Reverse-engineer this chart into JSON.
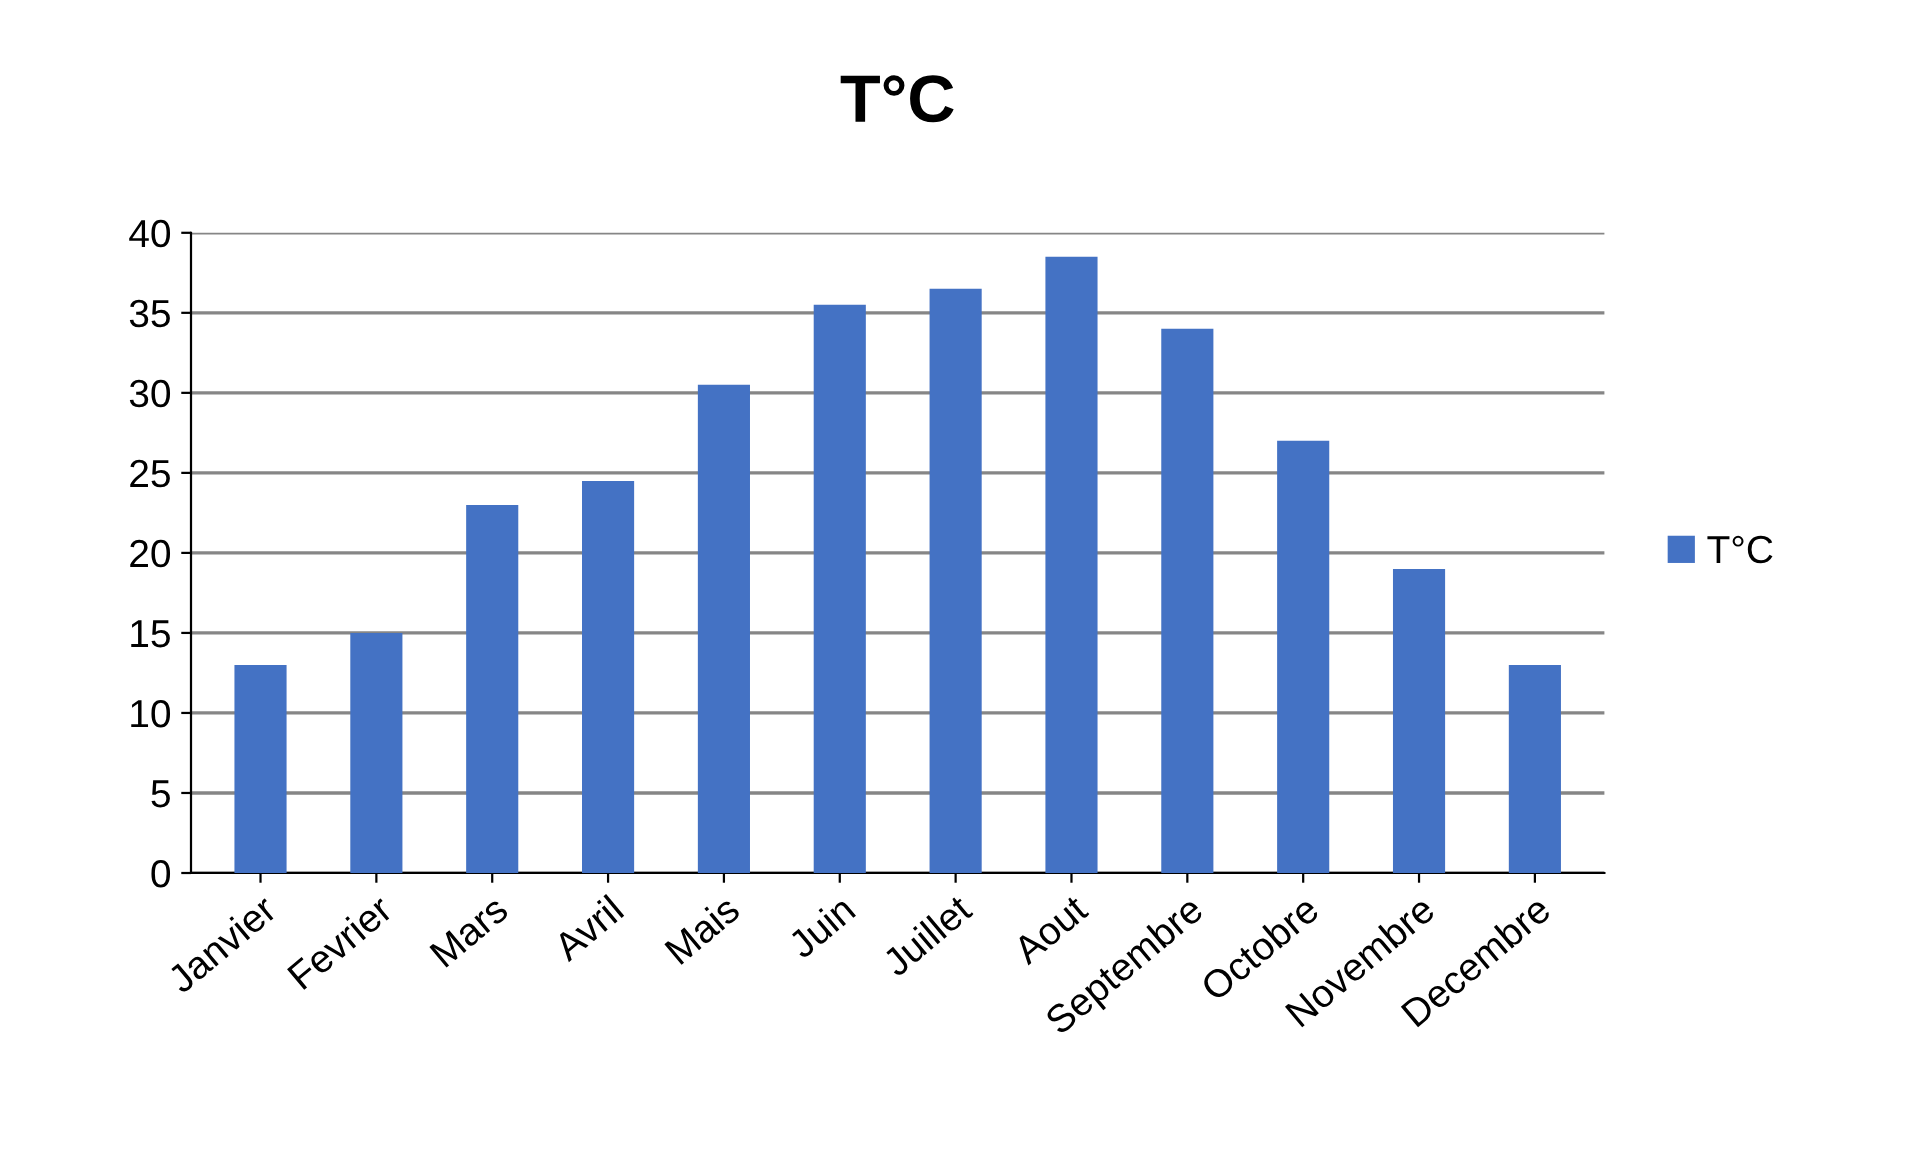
{
  "chart_data": {
    "type": "bar",
    "title": "T°C",
    "categories": [
      "Janvier",
      "Fevrier",
      "Mars",
      "Avril",
      "Mais",
      "Juin",
      "Juillet",
      "Aout",
      "Septembre",
      "Octobre",
      "Novembre",
      "Decembre"
    ],
    "series": [
      {
        "name": "T°C",
        "color": "#4472c4",
        "values": [
          13,
          15,
          23,
          24.5,
          30.5,
          35.5,
          36.5,
          38.5,
          34,
          27,
          19,
          13
        ]
      }
    ],
    "ylim": [
      0,
      40
    ],
    "yticks": [
      0,
      5,
      10,
      15,
      20,
      25,
      30,
      35,
      40
    ],
    "grid": "y",
    "legend": "right"
  }
}
